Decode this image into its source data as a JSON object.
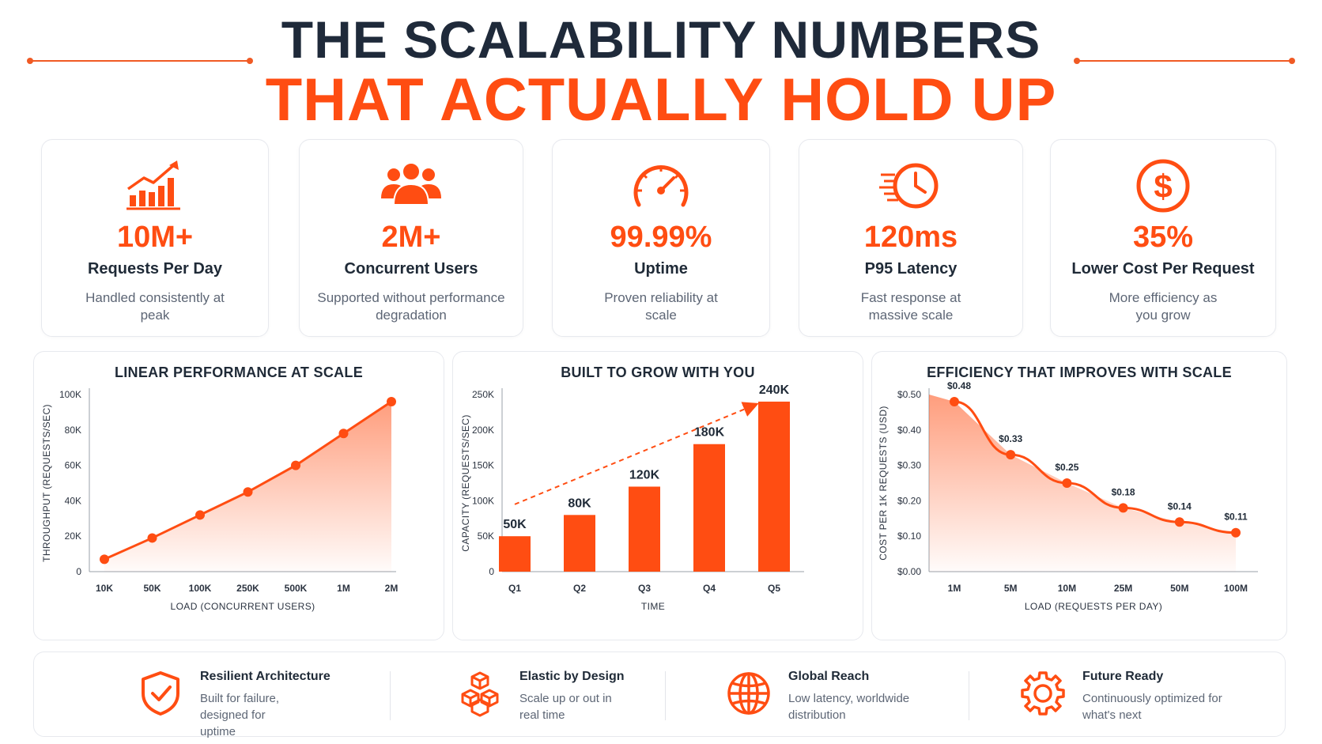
{
  "header": {
    "title_line1": "THE SCALABILITY NUMBERS",
    "title_line2": "THAT ACTUALLY HOLD UP"
  },
  "colors": {
    "accent": "#ff4d12",
    "dark": "#1f2a37",
    "muted": "#5d6675"
  },
  "stats": [
    {
      "icon": "growth-chart-icon",
      "value": "10M+",
      "label": "Requests Per Day",
      "desc": "Handled consistently at peak"
    },
    {
      "icon": "users-group-icon",
      "value": "2M+",
      "label": "Concurrent Users",
      "desc": "Supported without performance degradation"
    },
    {
      "icon": "speedometer-icon",
      "value": "99.99%",
      "label": "Uptime",
      "desc": "Proven reliability at scale"
    },
    {
      "icon": "fast-clock-icon",
      "value": "120ms",
      "label": "P95 Latency",
      "desc": "Fast response at massive scale"
    },
    {
      "icon": "dollar-coin-icon",
      "value": "35%",
      "label": "Lower Cost Per Request",
      "desc": "More efficiency as you grow"
    }
  ],
  "chart_data": [
    {
      "type": "area",
      "title": "LINEAR PERFORMANCE AT SCALE",
      "xlabel": "LOAD (CONCURRENT USERS)",
      "ylabel": "THROUGHPUT (REQUESTS/SEC)",
      "categories": [
        "10K",
        "50K",
        "100K",
        "250K",
        "500K",
        "1M",
        "2M"
      ],
      "values": [
        7000,
        19000,
        32000,
        45000,
        60000,
        78000,
        96000
      ],
      "ylim": [
        0,
        100000
      ],
      "yticks": [
        0,
        20000,
        40000,
        60000,
        80000,
        100000
      ],
      "ytick_labels": [
        "0",
        "20K",
        "40K",
        "60K",
        "80K",
        "100K"
      ],
      "grid": false
    },
    {
      "type": "bar",
      "title": "BUILT TO GROW WITH YOU",
      "xlabel": "TIME",
      "ylabel": "CAPACITY (REQUESTS/SEC)",
      "categories": [
        "Q1",
        "Q2",
        "Q3",
        "Q4",
        "Q5"
      ],
      "values": [
        50000,
        80000,
        120000,
        180000,
        240000
      ],
      "data_labels": [
        "50K",
        "80K",
        "120K",
        "180K",
        "240K"
      ],
      "ylim": [
        0,
        250000
      ],
      "yticks": [
        0,
        50000,
        100000,
        150000,
        200000,
        250000
      ],
      "ytick_labels": [
        "0",
        "50K",
        "100K",
        "150K",
        "200K",
        "250K"
      ],
      "trend_arrow": true,
      "grid": false
    },
    {
      "type": "area",
      "title": "EFFICIENCY THAT IMPROVES WITH SCALE",
      "xlabel": "LOAD (REQUESTS PER DAY)",
      "ylabel": "COST PER 1K REQUESTS (USD)",
      "categories": [
        "1M",
        "5M",
        "10M",
        "25M",
        "50M",
        "100M"
      ],
      "values": [
        0.48,
        0.33,
        0.25,
        0.18,
        0.14,
        0.11
      ],
      "data_labels": [
        "$0.48",
        "$0.33",
        "$0.25",
        "$0.18",
        "$0.14",
        "$0.11"
      ],
      "ylim": [
        0,
        0.5
      ],
      "yticks": [
        0,
        0.1,
        0.2,
        0.3,
        0.4,
        0.5
      ],
      "ytick_labels": [
        "$0.00",
        "$0.10",
        "$0.20",
        "$0.30",
        "$0.40",
        "$0.50"
      ],
      "grid": false
    }
  ],
  "features": [
    {
      "icon": "shield-check-icon",
      "title": "Resilient Architecture",
      "desc": "Built for failure, designed for uptime"
    },
    {
      "icon": "cubes-icon",
      "title": "Elastic by Design",
      "desc": "Scale up or out in real time"
    },
    {
      "icon": "globe-icon",
      "title": "Global Reach",
      "desc": "Low latency, worldwide distribution"
    },
    {
      "icon": "gear-icon",
      "title": "Future Ready",
      "desc": "Continuously optimized for what's next"
    }
  ]
}
